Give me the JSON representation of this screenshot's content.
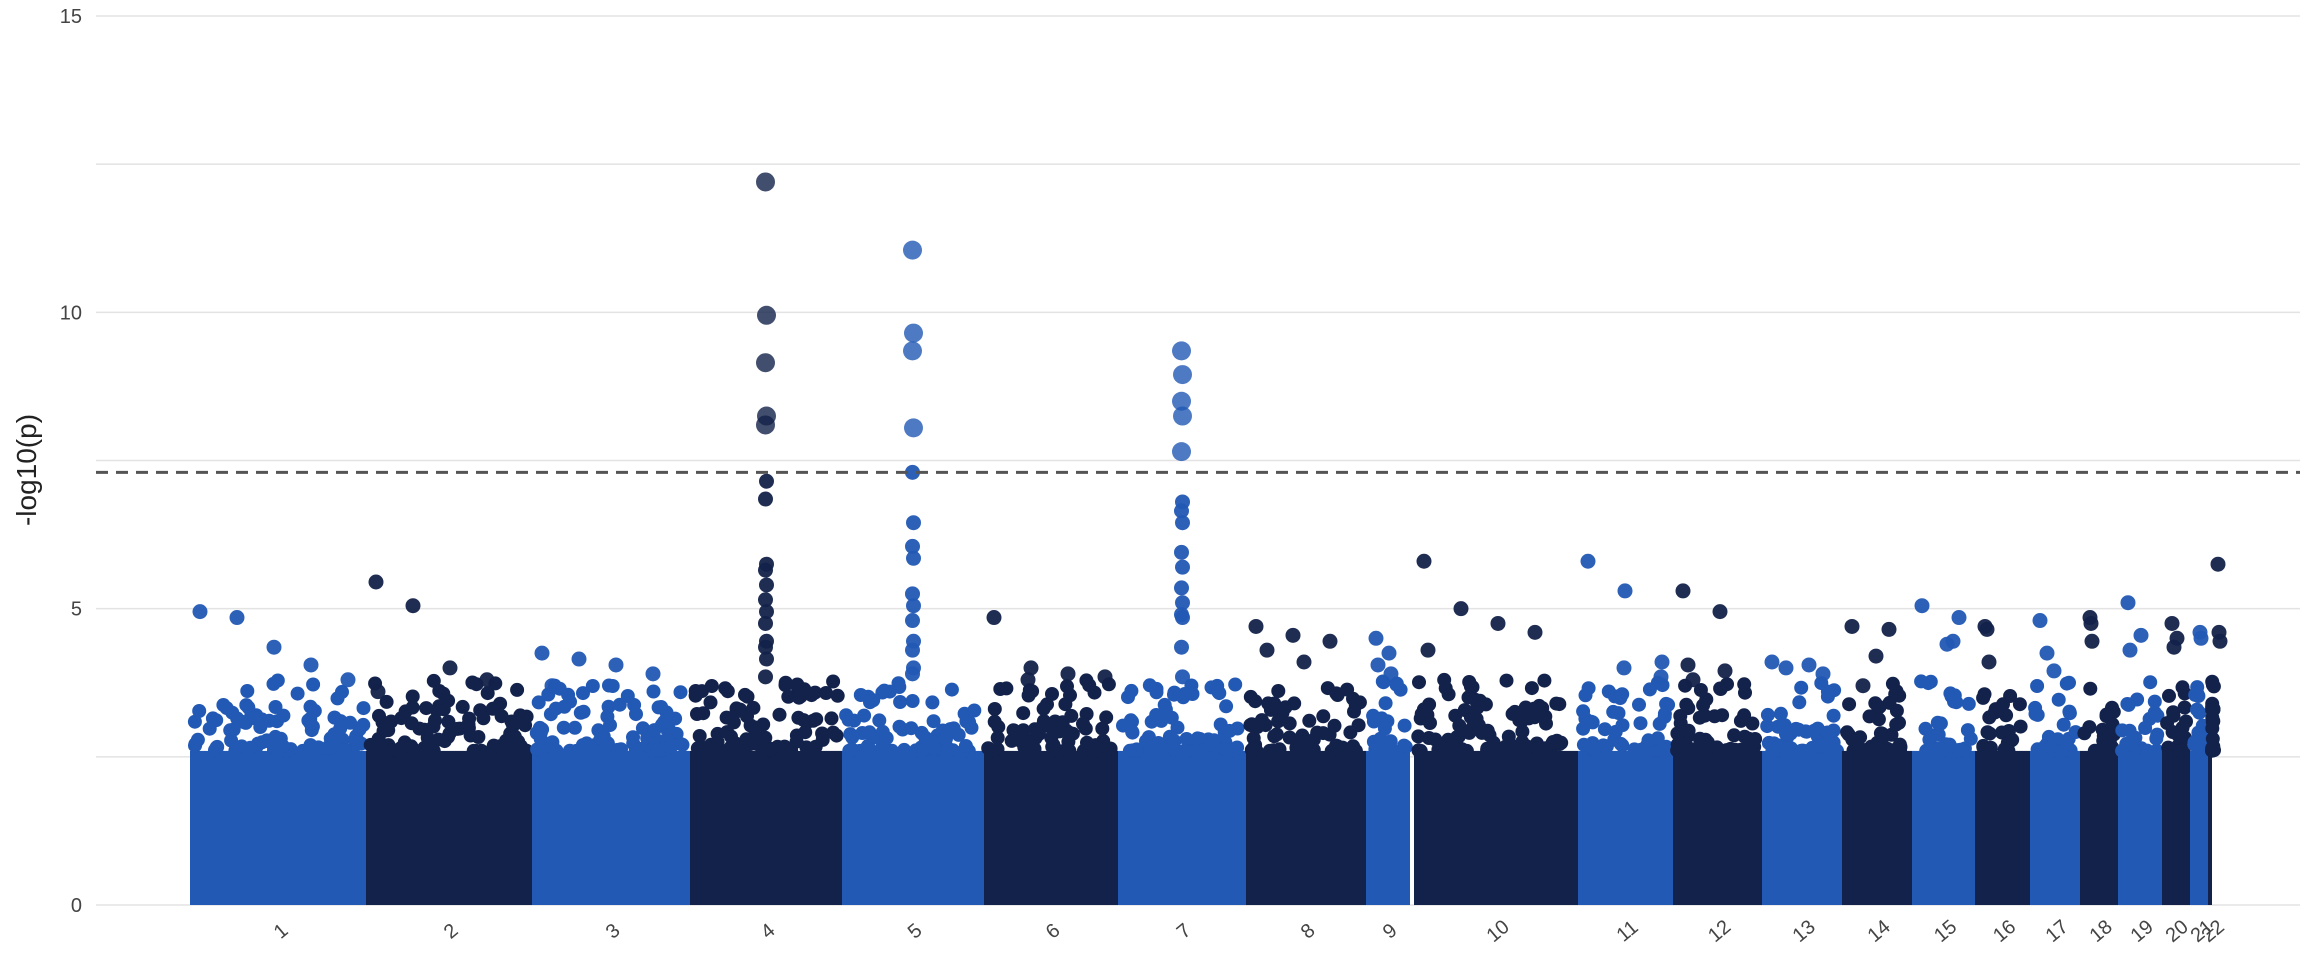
{
  "chart_data": {
    "type": "scatter",
    "title": "",
    "xlabel": "",
    "ylabel": "-log10(p)",
    "ylim": [
      0,
      15
    ],
    "yticks": [
      0,
      5,
      10,
      15
    ],
    "significance_threshold": 7.3,
    "grid": "horizontal",
    "colors": {
      "odd_chromosomes": "#2259b4",
      "even_chromosomes": "#13224a",
      "threshold_line": "#555555",
      "grid": "#e3e3e3"
    },
    "chromosomes": [
      {
        "label": "1",
        "top_hits": [
          4.95,
          4.85,
          4.35,
          4.05,
          3.8
        ]
      },
      {
        "label": "2",
        "top_hits": [
          5.45,
          5.05,
          4.0,
          3.8,
          3.6
        ]
      },
      {
        "label": "3",
        "top_hits": [
          4.25,
          4.15,
          4.05,
          3.9,
          3.7
        ]
      },
      {
        "label": "4",
        "top_hits": [
          12.2,
          9.95,
          9.15,
          8.25,
          8.1,
          7.15,
          6.85,
          5.75,
          5.65,
          5.4,
          5.15,
          4.95,
          4.75,
          4.45,
          4.35,
          4.15,
          3.85
        ]
      },
      {
        "label": "5",
        "top_hits": [
          11.05,
          9.65,
          9.35,
          8.05,
          7.3,
          6.45,
          6.05,
          5.85,
          5.25,
          5.05,
          4.8,
          4.45,
          4.3,
          4.0,
          3.9
        ]
      },
      {
        "label": "6",
        "top_hits": [
          4.85,
          4.0,
          3.9,
          3.85,
          3.8
        ]
      },
      {
        "label": "7",
        "top_hits": [
          9.35,
          8.95,
          8.5,
          8.25,
          7.65,
          6.8,
          6.65,
          6.45,
          5.95,
          5.7,
          5.35,
          5.1,
          4.9,
          4.85,
          4.35,
          3.85
        ]
      },
      {
        "label": "8",
        "top_hits": [
          4.7,
          4.55,
          4.45,
          4.3,
          4.1
        ]
      },
      {
        "label": "9",
        "top_hits": [
          4.5,
          4.25,
          4.05,
          3.9
        ]
      },
      {
        "label": "10",
        "top_hits": [
          5.8,
          5.0,
          4.75,
          4.6,
          4.3
        ]
      },
      {
        "label": "11",
        "top_hits": [
          5.8,
          5.3,
          4.1,
          4.0,
          3.85
        ]
      },
      {
        "label": "12",
        "top_hits": [
          5.3,
          4.95,
          4.05,
          3.95,
          3.8
        ]
      },
      {
        "label": "13",
        "top_hits": [
          4.1,
          4.05,
          4.0,
          3.9
        ]
      },
      {
        "label": "14",
        "top_hits": [
          4.7,
          4.65,
          4.2,
          3.7
        ]
      },
      {
        "label": "15",
        "top_hits": [
          5.05,
          4.85,
          4.45,
          4.4
        ]
      },
      {
        "label": "16",
        "top_hits": [
          4.7,
          4.65,
          4.1
        ]
      },
      {
        "label": "17",
        "top_hits": [
          4.8,
          4.25,
          3.95
        ]
      },
      {
        "label": "18",
        "top_hits": [
          4.85,
          4.75,
          4.45
        ]
      },
      {
        "label": "19",
        "top_hits": [
          5.1,
          4.55,
          4.3
        ]
      },
      {
        "label": "20",
        "top_hits": [
          4.75,
          4.5,
          4.35
        ]
      },
      {
        "label": "21",
        "top_hits": [
          4.6,
          4.5
        ]
      },
      {
        "label": "22",
        "top_hits": [
          5.75,
          4.6,
          4.45
        ]
      }
    ]
  }
}
